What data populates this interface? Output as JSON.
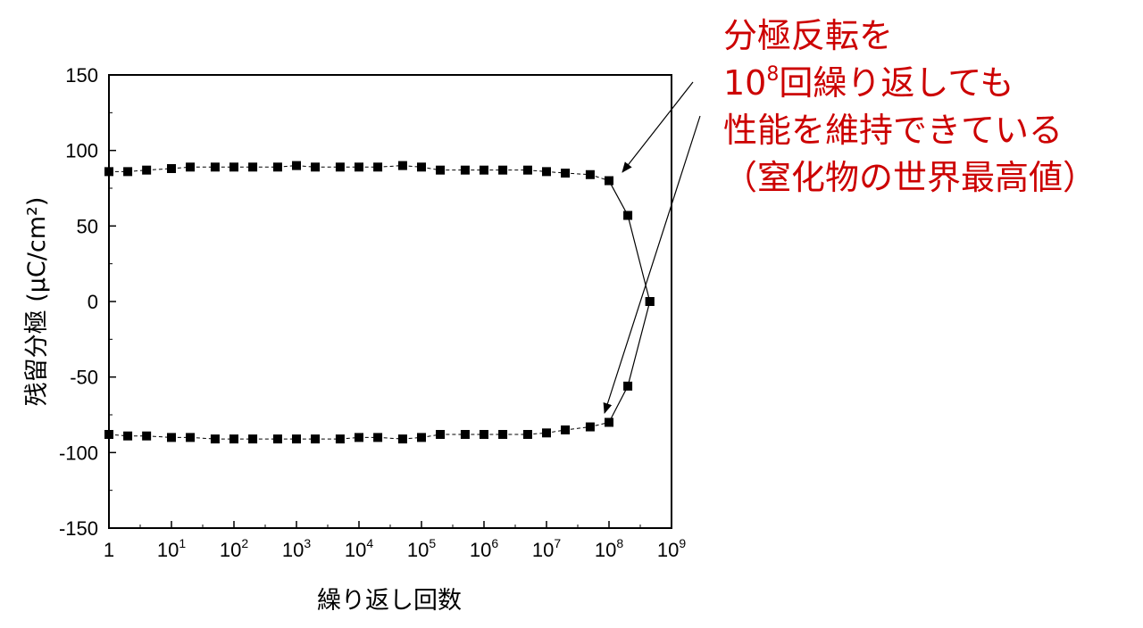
{
  "chart_data": {
    "type": "line",
    "title": "",
    "xlabel": "繰り返し回数",
    "ylabel": "残留分極 (µC/cm²)",
    "x_scale": "log",
    "xlim": [
      1,
      1000000000
    ],
    "ylim": [
      -150,
      150
    ],
    "x_ticks": [
      {
        "value": 1,
        "base": "1",
        "exp": ""
      },
      {
        "value": 10,
        "base": "10",
        "exp": "1"
      },
      {
        "value": 100,
        "base": "10",
        "exp": "2"
      },
      {
        "value": 1000,
        "base": "10",
        "exp": "3"
      },
      {
        "value": 10000,
        "base": "10",
        "exp": "4"
      },
      {
        "value": 100000,
        "base": "10",
        "exp": "5"
      },
      {
        "value": 1000000,
        "base": "10",
        "exp": "6"
      },
      {
        "value": 10000000,
        "base": "10",
        "exp": "7"
      },
      {
        "value": 100000000,
        "base": "10",
        "exp": "8"
      },
      {
        "value": 1000000000,
        "base": "10",
        "exp": "9"
      }
    ],
    "y_ticks": [
      150,
      100,
      50,
      0,
      -50,
      -100,
      -150
    ],
    "series": [
      {
        "marker": "square",
        "color": "#000000",
        "x": [
          1,
          2,
          4,
          10,
          20,
          50,
          100,
          200,
          500,
          1000,
          2000,
          5000,
          10000,
          20000,
          50000,
          100000,
          200000,
          500000,
          1000000,
          2000000,
          5000000,
          10000000,
          20000000,
          50000000,
          100000000,
          200000000,
          450000000
        ],
        "y": [
          86,
          86,
          87,
          88,
          89,
          89,
          89,
          89,
          89,
          90,
          89,
          89,
          89,
          89,
          90,
          89,
          87,
          87,
          87,
          87,
          87,
          86,
          85,
          84,
          80,
          57,
          0
        ]
      },
      {
        "marker": "square",
        "color": "#000000",
        "x": [
          1,
          2,
          4,
          10,
          20,
          50,
          100,
          200,
          500,
          1000,
          2000,
          5000,
          10000,
          20000,
          50000,
          100000,
          200000,
          500000,
          1000000,
          2000000,
          5000000,
          10000000,
          20000000,
          50000000,
          100000000,
          200000000,
          450000000
        ],
        "y": [
          -88,
          -89,
          -89,
          -90,
          -90,
          -91,
          -91,
          -91,
          -91,
          -91,
          -91,
          -91,
          -90,
          -90,
          -91,
          -90,
          -88,
          -88,
          -88,
          -88,
          -88,
          -87,
          -85,
          -83,
          -80,
          -56,
          0
        ]
      }
    ],
    "annotation": {
      "line1": "分極反転を",
      "line2_base": "10",
      "line2_exp": "8",
      "line2_rest": "回繰り返しても",
      "line3": "性能を維持できている",
      "line4": "（窒化物の世界最高値）",
      "color": "#cc0000"
    }
  }
}
